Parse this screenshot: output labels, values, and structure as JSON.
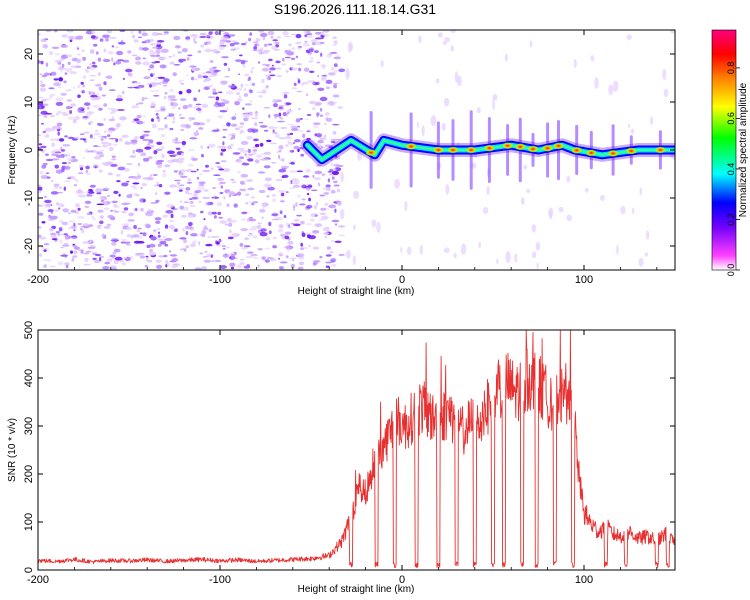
{
  "title": "S196.2026.111.18.14.G31",
  "chart_data": [
    {
      "type": "heatmap",
      "name": "spectrogram",
      "xlabel": "Height of straight line (km)",
      "ylabel": "Frequency (Hz)",
      "xlim": [
        -200,
        150
      ],
      "ylim": [
        -25,
        25
      ],
      "xticks": [
        -200,
        -100,
        0,
        100
      ],
      "yticks": [
        -20,
        -10,
        0,
        10,
        20
      ],
      "noise_region_x": [
        -200,
        -33
      ],
      "signal_region_x": [
        -33,
        150
      ],
      "signal_track_frequency_hz": 0,
      "signal_track_points": [
        {
          "x": -52,
          "y": 1
        },
        {
          "x": -44,
          "y": -2
        },
        {
          "x": -36,
          "y": 0
        },
        {
          "x": -28,
          "y": 2
        },
        {
          "x": -15,
          "y": -1
        },
        {
          "x": -10,
          "y": 2
        },
        {
          "x": 0,
          "y": 1
        },
        {
          "x": 20,
          "y": 0
        },
        {
          "x": 40,
          "y": 0
        },
        {
          "x": 60,
          "y": 1
        },
        {
          "x": 75,
          "y": 0
        },
        {
          "x": 88,
          "y": 1
        },
        {
          "x": 95,
          "y": 0
        },
        {
          "x": 110,
          "y": -1
        },
        {
          "x": 130,
          "y": 0
        },
        {
          "x": 150,
          "y": 0
        }
      ],
      "hot_spots_x": [
        -17,
        5,
        20,
        28,
        38,
        48,
        58,
        65,
        72,
        80,
        86,
        96,
        104,
        116,
        126,
        142
      ],
      "colorbar": {
        "label": "Normalized spectral amplitude",
        "range": [
          0,
          0.95
        ],
        "ticks": [
          0.0,
          0.2,
          0.4,
          0.6,
          0.8
        ],
        "tick_labels": [
          "0.0",
          "0.2",
          "0.4",
          "0.6",
          "0.8"
        ],
        "colors": [
          "#ffffff",
          "#ff00ff",
          "#6a00ff",
          "#0000ff",
          "#00ffff",
          "#00ff00",
          "#ffff00",
          "#ff8000",
          "#ff0000",
          "#ff0080"
        ]
      }
    },
    {
      "type": "line",
      "name": "snr",
      "xlabel": "Height of straight line (km)",
      "ylabel": "SNR (10 * v/v)",
      "xlim": [
        -200,
        150
      ],
      "ylim": [
        0,
        500
      ],
      "xticks": [
        -200,
        -100,
        0,
        100
      ],
      "yticks": [
        0,
        100,
        200,
        300,
        400,
        500
      ],
      "line_color": "#e83030",
      "series": [
        {
          "name": "SNR",
          "x": [
            -200,
            -190,
            -180,
            -170,
            -160,
            -150,
            -140,
            -130,
            -120,
            -110,
            -100,
            -90,
            -80,
            -70,
            -60,
            -50,
            -40,
            -33,
            -28,
            -24,
            -20,
            -17,
            -14,
            -10,
            -6,
            -2,
            2,
            6,
            10,
            14,
            18,
            22,
            26,
            30,
            34,
            38,
            42,
            46,
            50,
            54,
            58,
            62,
            66,
            70,
            74,
            78,
            82,
            86,
            90,
            94,
            97,
            100,
            104,
            108,
            112,
            116,
            120,
            125,
            130,
            135,
            140,
            145,
            150
          ],
          "values": [
            20,
            18,
            22,
            17,
            20,
            19,
            21,
            18,
            20,
            22,
            19,
            21,
            18,
            20,
            22,
            24,
            30,
            60,
            110,
            180,
            160,
            200,
            230,
            260,
            290,
            310,
            300,
            320,
            340,
            330,
            310,
            320,
            330,
            300,
            290,
            310,
            300,
            330,
            370,
            380,
            390,
            370,
            380,
            400,
            390,
            370,
            350,
            360,
            370,
            350,
            200,
            120,
            95,
            80,
            90,
            75,
            70,
            80,
            65,
            70,
            60,
            75,
            55
          ],
          "dips_x": [
            -28,
            -14,
            -4,
            8,
            20,
            30,
            40,
            50,
            56,
            66,
            74,
            84,
            94,
            112,
            123,
            140,
            146
          ]
        }
      ]
    }
  ]
}
